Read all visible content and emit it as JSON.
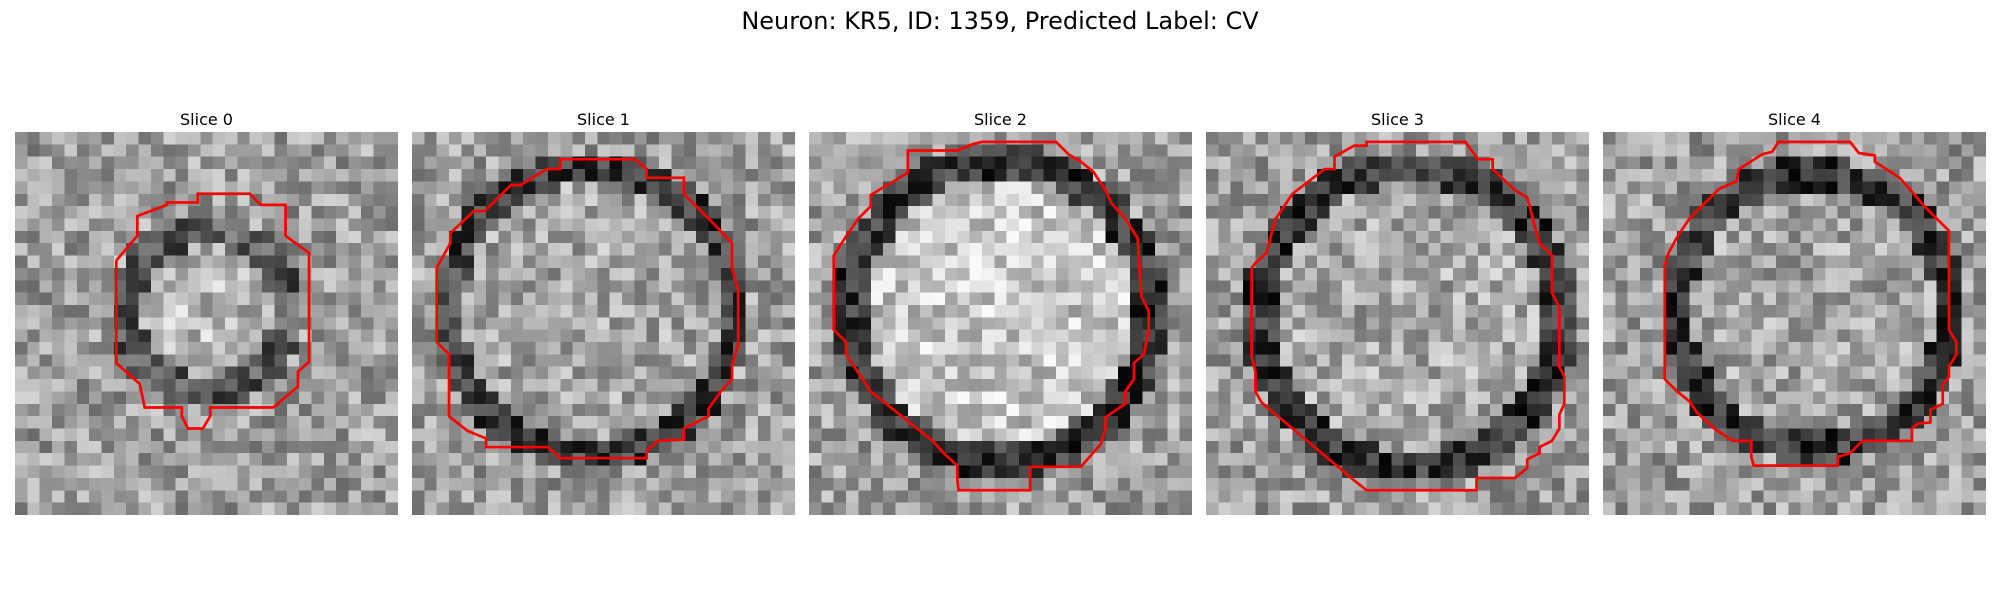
{
  "figure": {
    "title": "Neuron: KR5, ID: 1359, Predicted Label: CV"
  },
  "contour_color": "#ff0000",
  "panels": [
    {
      "title": "Slice 0"
    },
    {
      "title": "Slice 1"
    },
    {
      "title": "Slice 2"
    },
    {
      "title": "Slice 3"
    },
    {
      "title": "Slice 4"
    }
  ]
}
